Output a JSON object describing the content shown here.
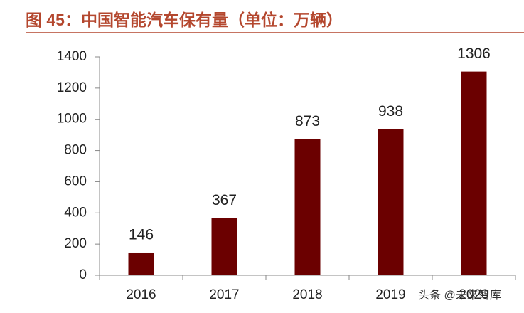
{
  "chart_data": {
    "type": "bar",
    "title": "图 45：中国智能汽车保有量（单位：万辆）",
    "categories": [
      "2016",
      "2017",
      "2018",
      "2019",
      "2020"
    ],
    "values": [
      146,
      367,
      873,
      938,
      1306
    ],
    "color": "#6b0000",
    "ylim": [
      0,
      1400
    ],
    "yticks": [
      0,
      200,
      400,
      600,
      800,
      1000,
      1200,
      1400
    ],
    "grid": false
  },
  "watermark": "头条 @未来智库"
}
